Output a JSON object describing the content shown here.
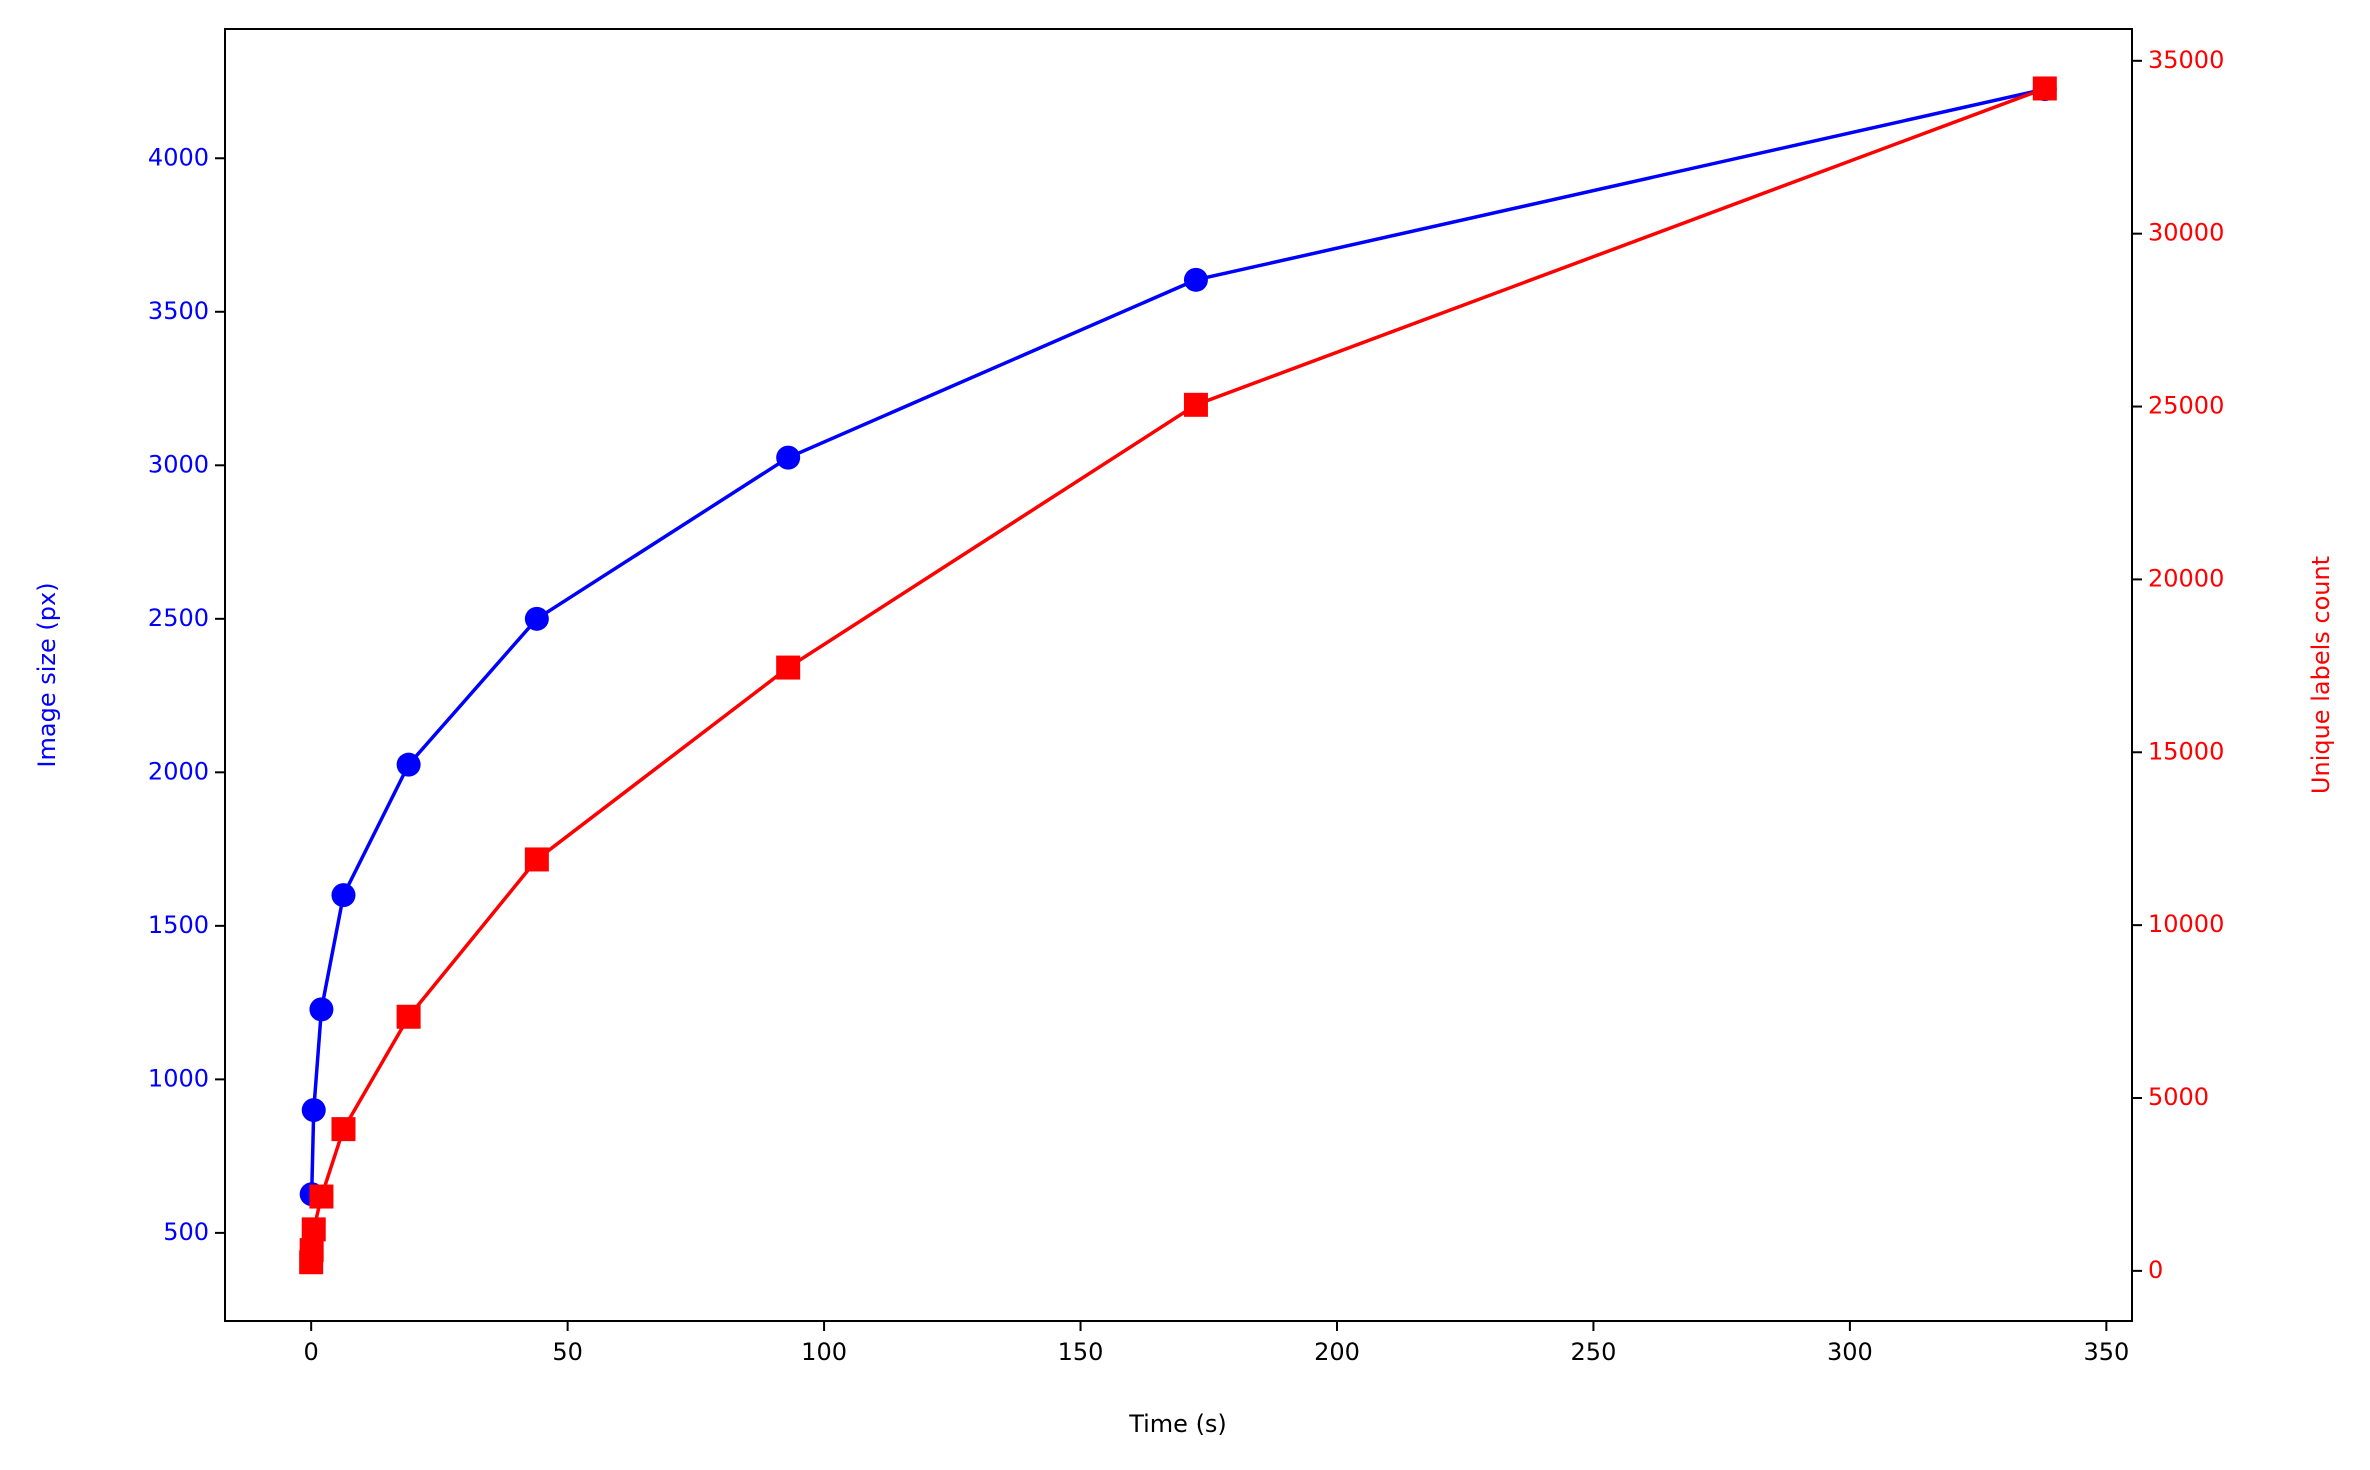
{
  "chart_data": {
    "type": "line",
    "xlabel": "Time (s)",
    "ylabel": "Image size (px)",
    "y2label": "Unique labels count",
    "xlim": [
      -16.8,
      355
    ],
    "xticks": [
      0,
      50,
      100,
      150,
      200,
      250,
      300,
      350
    ],
    "ylim": [
      213,
      4421
    ],
    "yticks": [
      500,
      1000,
      1500,
      2000,
      2500,
      3000,
      3500,
      4000
    ],
    "y2lim": [
      -1450,
      35920
    ],
    "y2ticks": [
      0,
      5000,
      10000,
      15000,
      20000,
      25000,
      30000,
      35000
    ],
    "ycolor": "#0000ff",
    "y2color": "#ff0000",
    "series": [
      {
        "name": "Image size (px)",
        "color": "#0000ff",
        "marker": "circle",
        "axis": "y",
        "x": [
          0.1,
          0.5,
          2,
          6.3,
          19,
          44,
          93,
          172.5,
          338
        ],
        "values": [
          626,
          900,
          1228,
          1600,
          2025,
          2500,
          3025,
          3604,
          4225
        ]
      },
      {
        "name": "Unique labels count",
        "color": "#ff0000",
        "marker": "square",
        "axis": "y2",
        "x": [
          0,
          0.1,
          0.5,
          2,
          6.3,
          19,
          44,
          93,
          172.5,
          338
        ],
        "values": [
          250,
          600,
          1200,
          2150,
          4100,
          7350,
          11900,
          17450,
          25050,
          34200
        ]
      }
    ]
  }
}
